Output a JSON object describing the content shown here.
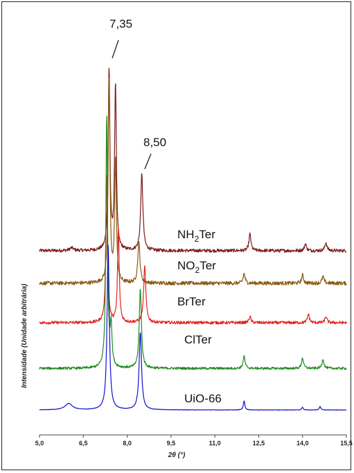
{
  "chart_data": {
    "type": "line",
    "xlabel": "2θ (°)",
    "ylabel": "Intensidade (Unidade arbitrária)",
    "xlim": [
      5.0,
      15.5
    ],
    "x_ticks": [
      "5,0",
      "6,5",
      "8,0",
      "9,5",
      "11,0",
      "12,5",
      "14,0",
      "15,5"
    ],
    "annotations": [
      {
        "text": "7,35",
        "x": 7.35
      },
      {
        "text": "8,50",
        "x": 8.5
      }
    ],
    "series": [
      {
        "name": "NH2Ter",
        "label_main": "NH",
        "label_sub": "2",
        "label_tail": "Ter",
        "color": "#7a1a1a",
        "baseline": 0.1,
        "noise": 0.012,
        "peaks": [
          [
            6.1,
            0.02,
            0.15
          ],
          [
            7.38,
            1.3,
            0.07
          ],
          [
            7.6,
            1.2,
            0.07
          ],
          [
            8.5,
            0.55,
            0.09
          ],
          [
            12.2,
            0.12,
            0.08
          ],
          [
            14.1,
            0.05,
            0.08
          ],
          [
            14.8,
            0.06,
            0.08
          ]
        ]
      },
      {
        "name": "NO2Ter",
        "label_main": "NO",
        "label_sub": "2",
        "label_tail": "Ter",
        "color": "#8a5a14",
        "baseline": 0.08,
        "noise": 0.014,
        "peaks": [
          [
            7.38,
            1.5,
            0.07
          ],
          [
            7.6,
            0.9,
            0.07
          ],
          [
            8.4,
            0.3,
            0.09
          ],
          [
            12.0,
            0.07,
            0.08
          ],
          [
            14.0,
            0.06,
            0.08
          ],
          [
            14.7,
            0.05,
            0.08
          ]
        ]
      },
      {
        "name": "BrTer",
        "label_main": "BrTer",
        "label_sub": "",
        "label_tail": "",
        "color": "#e0231f",
        "baseline": 0.08,
        "noise": 0.012,
        "peaks": [
          [
            7.3,
            1.2,
            0.07
          ],
          [
            7.7,
            0.75,
            0.07
          ],
          [
            8.6,
            0.45,
            0.09
          ],
          [
            12.2,
            0.05,
            0.08
          ],
          [
            14.2,
            0.07,
            0.08
          ],
          [
            14.8,
            0.05,
            0.08
          ]
        ]
      },
      {
        "name": "ClTer",
        "label_main": "ClTer",
        "label_sub": "",
        "label_tail": "",
        "color": "#1f8a1f",
        "baseline": 0.06,
        "noise": 0.009,
        "peaks": [
          [
            7.3,
            1.9,
            0.07
          ],
          [
            7.45,
            0.3,
            0.07
          ],
          [
            8.45,
            0.6,
            0.09
          ],
          [
            12.0,
            0.09,
            0.08
          ],
          [
            14.0,
            0.08,
            0.08
          ],
          [
            14.7,
            0.07,
            0.08
          ]
        ]
      },
      {
        "name": "UiO-66",
        "label_main": "UiO-66",
        "label_sub": "",
        "label_tail": "",
        "color": "#1010cc",
        "baseline": 0.0,
        "noise": 0.002,
        "peaks": [
          [
            6.0,
            0.07,
            0.3
          ],
          [
            7.35,
            1.8,
            0.09
          ],
          [
            8.45,
            0.85,
            0.1
          ],
          [
            12.0,
            0.1,
            0.06
          ],
          [
            14.0,
            0.03,
            0.06
          ],
          [
            14.6,
            0.04,
            0.06
          ]
        ]
      }
    ]
  }
}
